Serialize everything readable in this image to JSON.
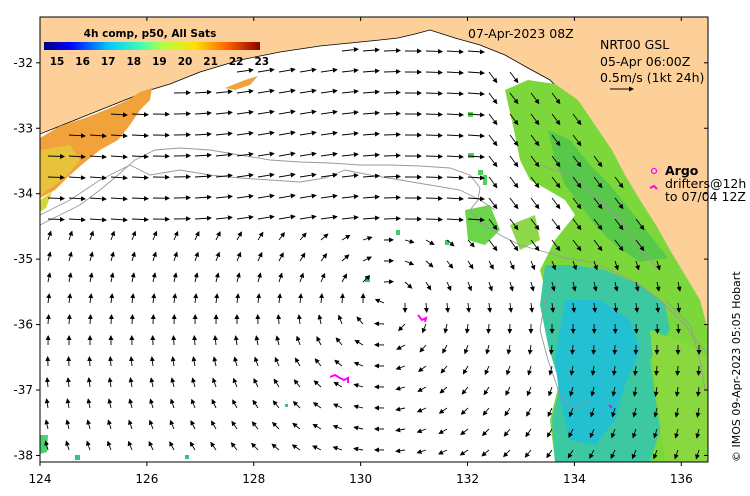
{
  "colorbar": {
    "title": "4h comp, p50, All Sats",
    "ticks": [
      "15",
      "16",
      "17",
      "18",
      "19",
      "20",
      "21",
      "22",
      "23"
    ]
  },
  "header": {
    "date": "07-Apr-2023 08Z",
    "product": "NRT00 GSL",
    "time": "05-Apr 06:00Z",
    "scale": "0.5m/s (1kt 24h)"
  },
  "legend": {
    "argo": "Argo",
    "drifters_line1": "drifters@12h",
    "drifters_line2": "to 07/04 12Z"
  },
  "credit": "© IMOS 09-Apr-2023 05:05 Hobart",
  "axes": {
    "x_ticks": [
      "124",
      "126",
      "128",
      "130",
      "132",
      "134",
      "136"
    ],
    "y_ticks": [
      "-32",
      "-33",
      "-34",
      "-35",
      "-36",
      "-37",
      "-38"
    ],
    "x_range": [
      124,
      136.5
    ],
    "y_range": [
      -38.1,
      -31.3
    ]
  },
  "colors": {
    "land": "#fdd09a",
    "land_edge": "#000000",
    "drifter": "#ff00ff"
  }
}
